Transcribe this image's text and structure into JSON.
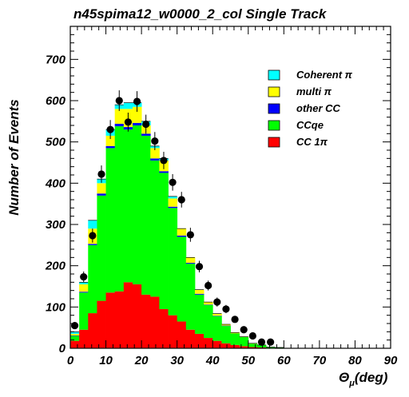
{
  "chart_data": {
    "type": "bar",
    "title": "n45spima12_w0000_2_col Single Track",
    "xlabel": "Θ",
    "xlabel_sub": "μ",
    "xlabel_unit": "(deg)",
    "ylabel": "Number of Events",
    "xlim": [
      0,
      90
    ],
    "ylim": [
      0,
      780
    ],
    "x_ticks": [
      0,
      10,
      20,
      30,
      40,
      50,
      60,
      70,
      80,
      90
    ],
    "x_tick_labels": [
      "0",
      "10",
      "20",
      "30",
      "40",
      "50",
      "60",
      "70",
      "80",
      "90"
    ],
    "y_ticks": [
      0,
      100,
      200,
      300,
      400,
      500,
      600,
      700
    ],
    "y_tick_labels": [
      "0",
      "100",
      "200",
      "300",
      "400",
      "500",
      "600",
      "700"
    ],
    "bin_width": 2.5,
    "bin_edges_start": 0,
    "stacking_order_bottom_to_top": [
      "CC 1π",
      "CCqe",
      "other CC",
      "multi π",
      "Coherent π"
    ],
    "series": [
      {
        "name": "CC 1π",
        "color": "#ff0000",
        "values": [
          18,
          45,
          85,
          115,
          135,
          138,
          160,
          155,
          130,
          125,
          95,
          80,
          65,
          45,
          35,
          25,
          18,
          12,
          8,
          5,
          3,
          2,
          1,
          0
        ]
      },
      {
        "name": "CCqe",
        "color": "#00ff00",
        "values": [
          12,
          90,
          165,
          255,
          350,
          400,
          370,
          385,
          385,
          330,
          330,
          260,
          205,
          160,
          95,
          80,
          60,
          42,
          28,
          22,
          8,
          6,
          2,
          2
        ]
      },
      {
        "name": "other CC",
        "color": "#0000ff",
        "values": [
          1,
          2,
          3,
          5,
          5,
          6,
          6,
          6,
          5,
          5,
          4,
          3,
          3,
          2,
          2,
          1,
          1,
          1,
          0,
          0,
          0,
          0,
          0,
          0
        ]
      },
      {
        "name": "multi π",
        "color": "#ffff00",
        "values": [
          4,
          18,
          37,
          25,
          25,
          36,
          44,
          39,
          20,
          25,
          26,
          20,
          17,
          13,
          10,
          6,
          5,
          3,
          2,
          1,
          1,
          0,
          0,
          0
        ]
      },
      {
        "name": "Coherent π",
        "color": "#00ffff",
        "values": [
          5,
          5,
          20,
          10,
          15,
          10,
          15,
          10,
          10,
          5,
          5,
          5,
          0,
          0,
          0,
          0,
          0,
          0,
          0,
          0,
          0,
          0,
          0,
          0
        ]
      }
    ],
    "data_points": {
      "x": [
        1.25,
        3.75,
        6.25,
        8.75,
        11.25,
        13.75,
        16.25,
        18.75,
        21.25,
        23.75,
        26.25,
        28.75,
        31.25,
        33.75,
        36.25,
        38.75,
        41.25,
        43.75,
        46.25,
        48.75,
        51.25,
        53.75
      ],
      "y": [
        55,
        173,
        273,
        422,
        530,
        600,
        548,
        598,
        543,
        502,
        455,
        402,
        360,
        275,
        198,
        152,
        112,
        95,
        70,
        45,
        30,
        15
      ],
      "err": [
        7,
        13,
        17,
        21,
        23,
        25,
        23,
        25,
        23,
        22,
        21,
        20,
        19,
        17,
        14,
        12,
        11,
        10,
        8,
        7,
        5,
        4
      ]
    },
    "extra_points": {
      "x": [
        56.25
      ],
      "y": [
        15
      ],
      "err": [
        4
      ]
    },
    "legend_entries": [
      {
        "label": "Coherent π",
        "color": "#00ffff"
      },
      {
        "label": "multi π",
        "color": "#ffff00"
      },
      {
        "label": "other CC",
        "color": "#0000ff"
      },
      {
        "label": "CCqe",
        "color": "#00ff00"
      },
      {
        "label": "CC 1π",
        "color": "#ff0000"
      }
    ],
    "legend_position": "top-right",
    "grid": false
  }
}
